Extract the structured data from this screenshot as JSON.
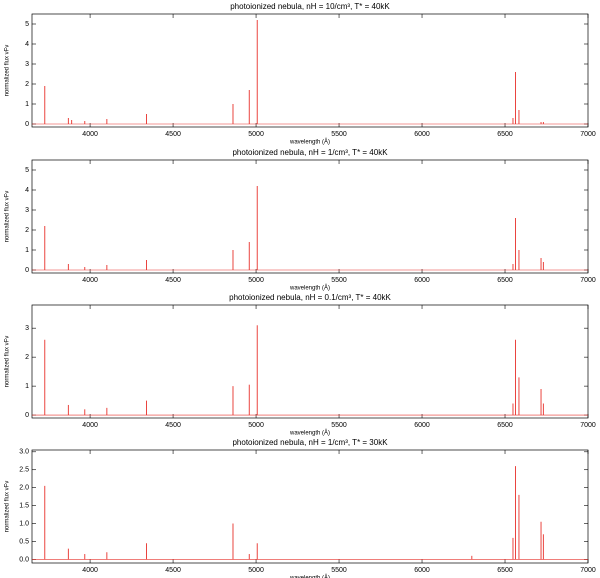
{
  "chart_data": [
    {
      "type": "bar",
      "title": "photoionized nebula, nH = 10/cm³, T* = 40kK",
      "xlabel": "wavelength (Å)",
      "ylabel": "normalized flux   νFν",
      "color": "#e8302a",
      "x": [
        3727,
        3869,
        3889,
        3968,
        4101,
        4340,
        4861,
        4959,
        5007,
        6548,
        6563,
        6584,
        6717,
        6731
      ],
      "values": [
        1.9,
        0.3,
        0.2,
        0.15,
        0.25,
        0.5,
        1.0,
        1.7,
        5.2,
        0.3,
        2.6,
        0.7,
        0.1,
        0.1
      ],
      "xlim": [
        3650,
        7000
      ],
      "xticks": [
        4000,
        4500,
        5000,
        5500,
        6000,
        6500,
        7000
      ],
      "ylim": [
        -0.15,
        5.5
      ],
      "yticks": [
        0,
        1,
        2,
        3,
        4,
        5
      ]
    },
    {
      "type": "bar",
      "title": "photoionized nebula, nH = 1/cm³, T* = 40kK",
      "xlabel": "wavelength (Å)",
      "ylabel": "normalized flux   νFν",
      "color": "#e8302a",
      "x": [
        3727,
        3869,
        3968,
        4101,
        4340,
        4861,
        4959,
        5007,
        6548,
        6563,
        6584,
        6717,
        6731
      ],
      "values": [
        2.2,
        0.3,
        0.15,
        0.25,
        0.5,
        1.0,
        1.4,
        4.2,
        0.3,
        2.6,
        1.0,
        0.6,
        0.4
      ],
      "xlim": [
        3650,
        7000
      ],
      "xticks": [
        4000,
        4500,
        5000,
        5500,
        6000,
        6500,
        7000
      ],
      "ylim": [
        -0.15,
        5.5
      ],
      "yticks": [
        0,
        1,
        2,
        3,
        4,
        5
      ]
    },
    {
      "type": "bar",
      "title": "photoionized nebula, nH = 0.1/cm³, T* = 40kK",
      "xlabel": "wavelength (Å)",
      "ylabel": "normalized flux   νFν",
      "color": "#e8302a",
      "x": [
        3727,
        3869,
        3968,
        4101,
        4340,
        4861,
        4959,
        5007,
        6548,
        6563,
        6584,
        6717,
        6731
      ],
      "values": [
        2.6,
        0.35,
        0.2,
        0.25,
        0.5,
        1.0,
        1.05,
        3.1,
        0.4,
        2.6,
        1.3,
        0.9,
        0.4
      ],
      "xlim": [
        3650,
        7000
      ],
      "xticks": [
        4000,
        4500,
        5000,
        5500,
        6000,
        6500,
        7000
      ],
      "ylim": [
        -0.1,
        3.8
      ],
      "yticks": [
        0,
        1,
        2,
        3
      ]
    },
    {
      "type": "bar",
      "title": "photoionized nebula, nH = 1/cm³, T* = 30kK",
      "xlabel": "wavelength (Å)",
      "ylabel": "normalized flux   νFν",
      "color": "#e8302a",
      "x": [
        3727,
        3869,
        3968,
        4101,
        4340,
        4861,
        4959,
        5007,
        6300,
        6548,
        6563,
        6584,
        6717,
        6731
      ],
      "values": [
        2.05,
        0.3,
        0.15,
        0.2,
        0.45,
        1.0,
        0.15,
        0.45,
        0.1,
        0.6,
        2.6,
        1.8,
        1.05,
        0.7
      ],
      "xlim": [
        3650,
        7000
      ],
      "xticks": [
        4000,
        4500,
        5000,
        5500,
        6000,
        6500,
        7000
      ],
      "ylim": [
        -0.1,
        3.05
      ],
      "yticks": [
        {
          "value": 0,
          "label": "0.0"
        },
        {
          "value": 0.5,
          "label": "0.5"
        },
        {
          "value": 1,
          "label": "1.0"
        },
        {
          "value": 1.5,
          "label": "1.5"
        },
        {
          "value": 2,
          "label": "2.0"
        },
        {
          "value": 2.5,
          "label": "2.5"
        },
        {
          "value": 3,
          "label": "3.0"
        }
      ]
    }
  ]
}
